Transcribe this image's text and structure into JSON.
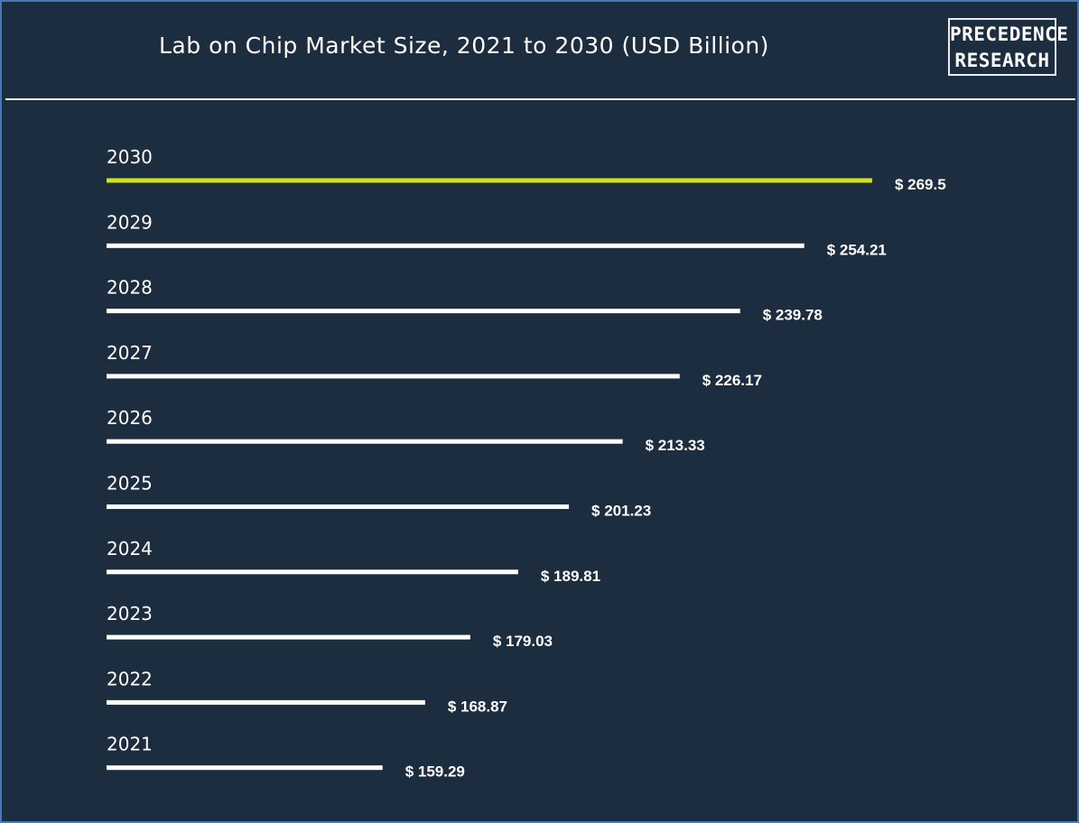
{
  "title": "Lab on Chip Market Size, 2021 to 2030 (USD Billion)",
  "logo": {
    "line1": "PRECEDENCE",
    "line2": "RESEARCH"
  },
  "colors": {
    "background": "#1d2d40",
    "bar_default": "#ffffff",
    "bar_highlight": "#cfe21a",
    "text": "#ffffff"
  },
  "chart_data": {
    "type": "bar",
    "orientation": "horizontal",
    "title": "Lab on Chip Market Size, 2021 to 2030 (USD Billion)",
    "categories": [
      "2030",
      "2029",
      "2028",
      "2027",
      "2026",
      "2025",
      "2024",
      "2023",
      "2022",
      "2021"
    ],
    "values": [
      269.5,
      254.21,
      239.78,
      226.17,
      213.33,
      201.23,
      189.81,
      179.03,
      168.87,
      159.29
    ],
    "value_labels": [
      "$ 269.5",
      "$ 254.21",
      "$ 239.78",
      "$ 226.17",
      "$ 213.33",
      "$ 201.23",
      "$ 189.81",
      "$ 179.03",
      "$ 168.87",
      "$ 159.29"
    ],
    "highlight_category": "2030",
    "unit": "USD Billion",
    "grid": false,
    "legend": "none"
  }
}
